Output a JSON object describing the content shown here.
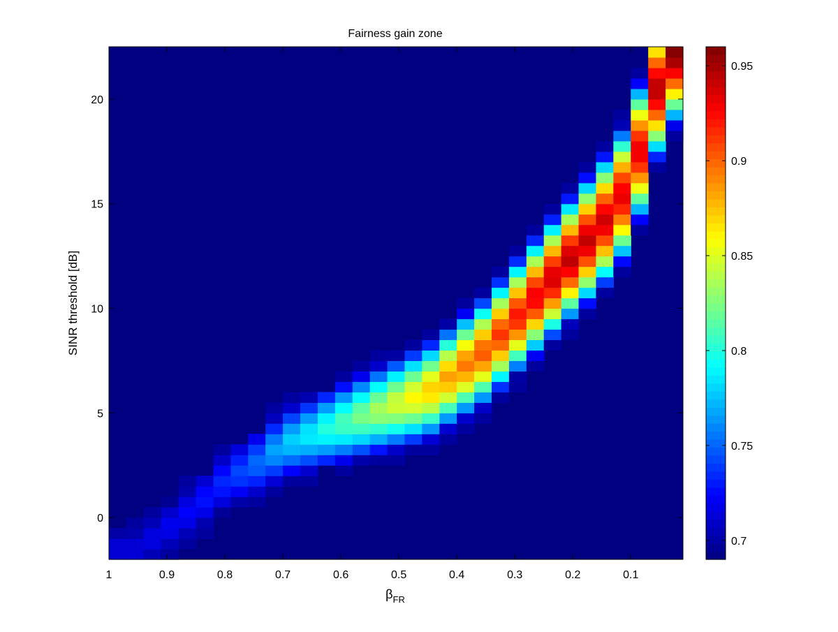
{
  "chart_data": {
    "type": "heatmap",
    "title": "Fairness gain zone",
    "xlabel": "β",
    "xlabel_subscript": "FR",
    "ylabel": "SINR threshold [dB]",
    "x_reversed": true,
    "xlim": [
      0.01,
      1.0
    ],
    "ylim": [
      -2,
      22.5
    ],
    "xticks": [
      1,
      0.9,
      0.8,
      0.7,
      0.6,
      0.5,
      0.4,
      0.3,
      0.2,
      0.1
    ],
    "xtick_labels": [
      "1",
      "0.9",
      "0.8",
      "0.7",
      "0.6",
      "0.5",
      "0.4",
      "0.3",
      "0.2",
      "0.1"
    ],
    "yticks": [
      0,
      5,
      10,
      15,
      20
    ],
    "ytick_labels": [
      "0",
      "5",
      "10",
      "15",
      "20"
    ],
    "colormap": "jet",
    "clim": [
      0.69,
      0.96
    ],
    "colorbar_ticks": [
      0.7,
      0.75,
      0.8,
      0.85,
      0.9,
      0.95
    ],
    "colorbar_tick_labels": [
      "0.7",
      "0.75",
      "0.8",
      "0.85",
      "0.9",
      "0.95"
    ],
    "grid": false,
    "grid_shape": {
      "cols": 33,
      "rows": 49
    },
    "cell_x_step": 0.03,
    "cell_y_step": 0.5,
    "ridge_profile": [
      {
        "x": 0.95,
        "y": -1.5,
        "value": 0.715
      },
      {
        "x": 0.9,
        "y": -0.5,
        "value": 0.72
      },
      {
        "x": 0.85,
        "y": 0.5,
        "value": 0.725
      },
      {
        "x": 0.8,
        "y": 1.8,
        "value": 0.735
      },
      {
        "x": 0.75,
        "y": 2.5,
        "value": 0.75
      },
      {
        "x": 0.7,
        "y": 3.5,
        "value": 0.775
      },
      {
        "x": 0.65,
        "y": 4.0,
        "value": 0.79
      },
      {
        "x": 0.6,
        "y": 4.5,
        "value": 0.81
      },
      {
        "x": 0.55,
        "y": 5.0,
        "value": 0.83
      },
      {
        "x": 0.5,
        "y": 5.5,
        "value": 0.85
      },
      {
        "x": 0.45,
        "y": 6.0,
        "value": 0.87
      },
      {
        "x": 0.4,
        "y": 7.0,
        "value": 0.89
      },
      {
        "x": 0.35,
        "y": 8.0,
        "value": 0.905
      },
      {
        "x": 0.3,
        "y": 9.5,
        "value": 0.92
      },
      {
        "x": 0.25,
        "y": 11.0,
        "value": 0.935
      },
      {
        "x": 0.2,
        "y": 12.5,
        "value": 0.945
      },
      {
        "x": 0.15,
        "y": 14.0,
        "value": 0.94
      },
      {
        "x": 0.1,
        "y": 16.0,
        "value": 0.93
      },
      {
        "x": 0.07,
        "y": 19.0,
        "value": 0.935
      },
      {
        "x": 0.04,
        "y": 22.0,
        "value": 0.955
      },
      {
        "x": 0.02,
        "y": 22.3,
        "value": 0.96
      }
    ]
  }
}
